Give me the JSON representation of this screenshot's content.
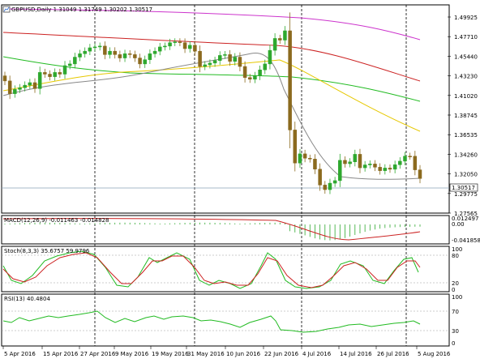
{
  "window": {
    "symbol_header": "GBPUSD,Daily  1.31049 1.31749 1.30202 1.30517",
    "current_price": "1.30517",
    "icon": "chart-window-icon"
  },
  "main_axis": {
    "ticks": [
      "1.49925",
      "1.47710",
      "1.45440",
      "1.43230",
      "1.41020",
      "1.38745",
      "1.36535",
      "1.34260",
      "1.32050",
      "1.29775",
      "1.27565"
    ]
  },
  "macd": {
    "header": "MACD(12,26,9) -0.011463 -0.014828",
    "ticks": [
      "0.012497",
      "0.00",
      "-0.041858"
    ]
  },
  "stoch": {
    "header": "Stoch(8,3,3) 35.6757 59.9796",
    "ticks": [
      "100",
      "80",
      "20",
      "0"
    ]
  },
  "rsi": {
    "header": "RSI(13) 40.4804",
    "ticks": [
      "100",
      "70",
      "30",
      "0"
    ]
  },
  "dates": [
    "5 Apr 2016",
    "15 Apr 2016",
    "27 Apr 2016",
    "9 May 2016",
    "19 May 2016",
    "31 May 2016",
    "10 Jun 2016",
    "22 Jun 2016",
    "4 Jul 2016",
    "14 Jul 2016",
    "26 Jul 2016",
    "5 Aug 2016"
  ],
  "colors": {
    "bull": "#2ea82e",
    "bear": "#8b6a1e",
    "ma_magenta": "#cc33cc",
    "ma_red": "#cc2222",
    "ma_yellow": "#e6c800",
    "ma_green": "#22bb22",
    "ma_gray": "#888888"
  },
  "chart_data": {
    "type": "candlestick",
    "ylim": [
      1.2645,
      1.5095
    ],
    "closes": [
      1.42,
      1.405,
      1.41,
      1.412,
      1.415,
      1.418,
      1.411,
      1.43,
      1.428,
      1.425,
      1.43,
      1.428,
      1.438,
      1.44,
      1.448,
      1.452,
      1.455,
      1.459,
      1.46,
      1.461,
      1.451,
      1.455,
      1.451,
      1.447,
      1.452,
      1.451,
      1.447,
      1.44,
      1.445,
      1.452,
      1.455,
      1.46,
      1.461,
      1.465,
      1.466,
      1.465,
      1.458,
      1.462,
      1.455,
      1.437,
      1.439,
      1.441,
      1.444,
      1.45,
      1.451,
      1.443,
      1.448,
      1.437,
      1.424,
      1.422,
      1.426,
      1.433,
      1.44,
      1.456,
      1.47,
      1.468,
      1.479,
      1.3623,
      1.3234,
      1.3342,
      1.3291,
      1.3281,
      1.3162,
      1.2975,
      1.2921,
      1.2997,
      1.3027,
      1.3266,
      1.3226,
      1.3248,
      1.3337,
      1.3178,
      1.3212,
      1.3223,
      1.3185,
      1.3144,
      1.3175,
      1.3161,
      1.3214,
      1.3256,
      1.3315,
      1.3314,
      1.3154,
      1.3052
    ]
  }
}
